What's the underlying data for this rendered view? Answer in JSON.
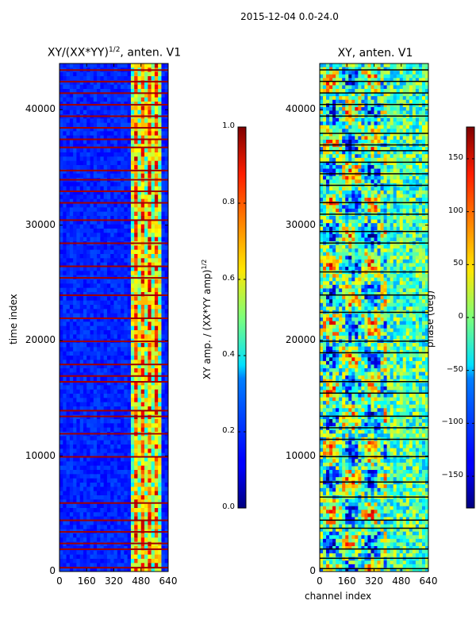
{
  "chart_data": {
    "suptitle": "2015-12-04 0.0-24.0",
    "panels": [
      {
        "id": "amp",
        "type": "heatmap",
        "title_main": "XY/(XX*YY)",
        "title_sup": "1/2",
        "title_tail": ", anten. V1",
        "xlabel": "",
        "ylabel": "time index",
        "xlim": [
          0,
          640
        ],
        "ylim": [
          0,
          44000
        ],
        "xticks": [
          0,
          160,
          320,
          480,
          640
        ],
        "yticks": [
          0,
          10000,
          20000,
          30000,
          40000
        ],
        "colorbar": {
          "label_main": "XY amp. / (XX*YY amp)",
          "label_sup": "1/2",
          "range": [
            0.0,
            1.0
          ],
          "ticks": [
            "0.0",
            "0.2",
            "0.4",
            "0.6",
            "0.8",
            "1.0"
          ],
          "tick_values": [
            0.0,
            0.2,
            0.4,
            0.6,
            0.8,
            1.0
          ],
          "colormap": "jet"
        },
        "red_rows": [
          400,
          2000,
          2500,
          3500,
          4500,
          6000,
          10000,
          12000,
          13500,
          14000,
          16500,
          17000,
          18000,
          20000,
          22000,
          24000,
          25500,
          26500,
          28500,
          30500,
          32000,
          33000,
          34000,
          34800,
          36800,
          37500,
          38500,
          39500,
          40500,
          41500,
          42500,
          43500
        ]
      },
      {
        "id": "phase",
        "type": "heatmap",
        "title_main": "XY, anten. V1",
        "xlabel": "channel index",
        "ylabel": "",
        "xlim": [
          0,
          640
        ],
        "ylim": [
          0,
          44000
        ],
        "xticks": [
          0,
          160,
          320,
          480,
          640
        ],
        "yticks": [
          0,
          10000,
          20000,
          30000,
          40000
        ],
        "colorbar": {
          "label_main": "phase (deg)",
          "range": [
            -180,
            180
          ],
          "ticks": [
            "150",
            "100",
            "50",
            "0",
            "−50",
            "−100",
            "−150"
          ],
          "tick_values": [
            150,
            100,
            50,
            0,
            -50,
            -100,
            -150
          ],
          "colormap": "jet"
        },
        "black_rows": [
          300,
          1200,
          2000,
          3800,
          4500,
          6500,
          7800,
          10000,
          11500,
          12500,
          13500,
          15500,
          16500,
          19000,
          20000,
          22500,
          24000,
          26000,
          28500,
          29500,
          31000,
          32000,
          33500,
          34500,
          35500,
          36500,
          37000,
          38000,
          39500,
          40500,
          41500,
          42500,
          43500
        ]
      }
    ]
  }
}
